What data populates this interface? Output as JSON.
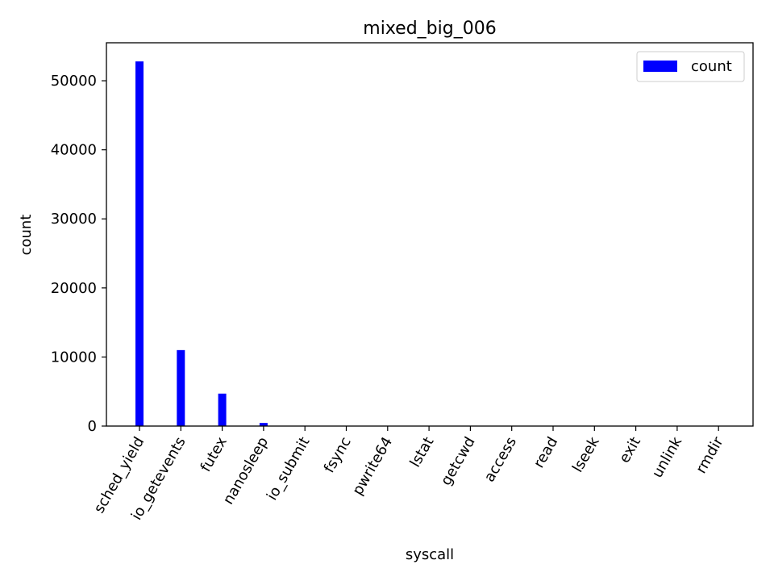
{
  "chart_data": {
    "type": "bar",
    "title": "mixed_big_006",
    "xlabel": "syscall",
    "ylabel": "count",
    "categories": [
      "sched_yield",
      "io_getevents",
      "futex",
      "nanosleep",
      "io_submit",
      "fsync",
      "pwrite64",
      "lstat",
      "getcwd",
      "access",
      "read",
      "lseek",
      "exit",
      "unlink",
      "rmdir"
    ],
    "series": [
      {
        "name": "count",
        "color": "#0000ff",
        "values": [
          52800,
          11000,
          4700,
          450,
          60,
          40,
          30,
          20,
          15,
          12,
          10,
          8,
          5,
          4,
          3
        ]
      }
    ],
    "yticks": [
      0,
      10000,
      20000,
      30000,
      40000,
      50000
    ],
    "ylim": [
      0,
      55500
    ],
    "legend": "top-right",
    "grid": false
  }
}
